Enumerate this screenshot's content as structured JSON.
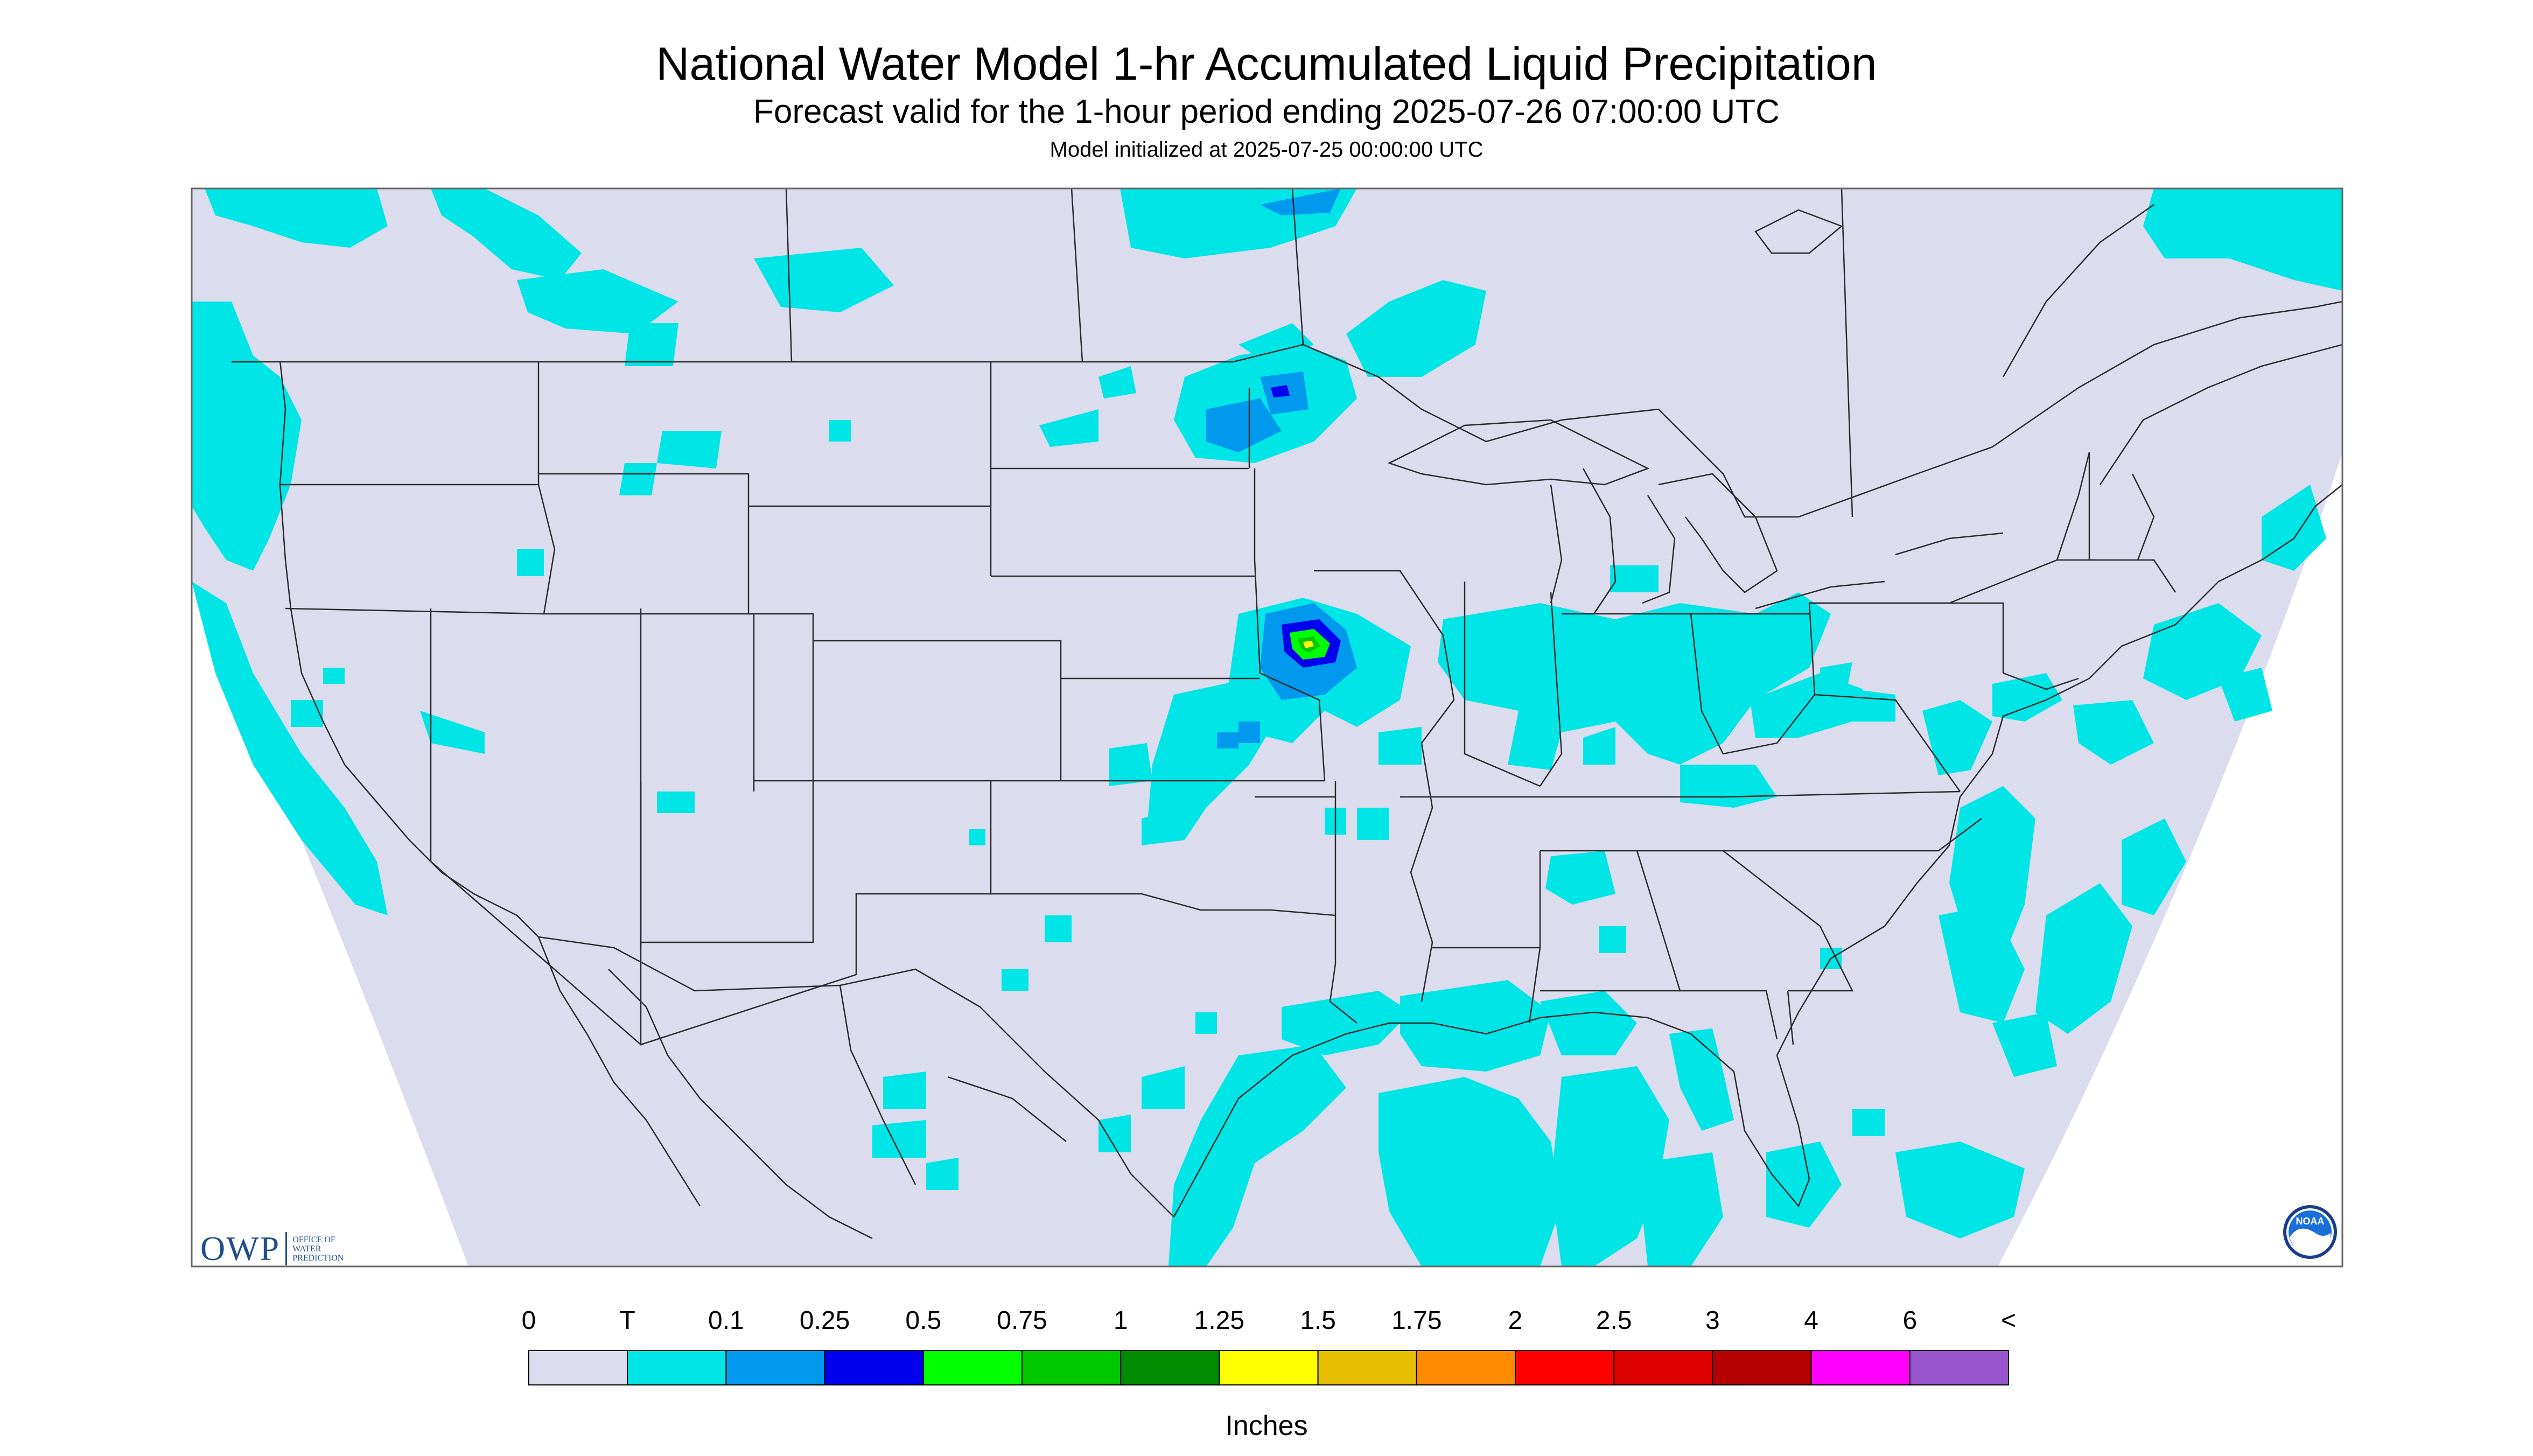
{
  "header": {
    "title": "National Water Model 1-hr Accumulated Liquid Precipitation",
    "subtitle": "Forecast valid for the 1-hour period ending 2025-07-26 07:00:00 UTC",
    "init_line": "Model initialized at 2025-07-25 00:00:00 UTC"
  },
  "legend": {
    "units": "Inches",
    "labels": [
      "0",
      "T",
      "0.1",
      "0.25",
      "0.5",
      "0.75",
      "1",
      "1.25",
      "1.5",
      "1.75",
      "2",
      "2.5",
      "3",
      "4",
      "6",
      "<"
    ],
    "colors": [
      "#dcdcef",
      "#00e5e5",
      "#0099ee",
      "#0000ee",
      "#00ff00",
      "#00c800",
      "#008c00",
      "#ffff00",
      "#e6be00",
      "#ff8c00",
      "#ff0000",
      "#dc0000",
      "#b40000",
      "#ff00ff",
      "#9955cc"
    ]
  },
  "logos": {
    "owp_letters": "OWP",
    "owp_text": [
      "OFFICE OF",
      "WATER",
      "PREDICTION"
    ],
    "noaa_text": "NOAA"
  },
  "icons": [
    "owp-logo",
    "noaa-logo-icon"
  ]
}
